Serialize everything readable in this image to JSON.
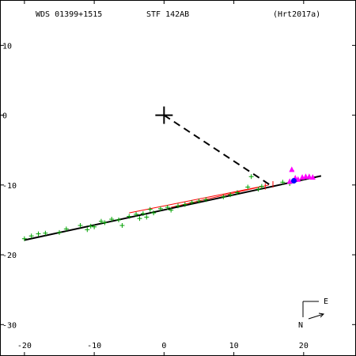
{
  "header": {
    "wds_id": "WDS 01399+1515",
    "discoverer": "STF 142AB",
    "orbit_ref": "(Hrt2017a)"
  },
  "compass": {
    "east_label": "E",
    "north_label": "N"
  },
  "colors": {
    "orbit": "#000000",
    "node_line": "#000000",
    "micrometer": "#00a000",
    "interferometric": "#ff00ff",
    "residual": "#ff0000",
    "current": "#0000ff"
  },
  "chart_data": {
    "type": "scatter",
    "xlim": [
      -23.5,
      27.5
    ],
    "ylim": [
      -34.5,
      16.5
    ],
    "x_ticks": [
      -20,
      -10,
      0,
      10,
      20
    ],
    "y_ticks": [
      10,
      0,
      -10,
      -20,
      -30
    ],
    "grid": false,
    "primary": [
      0,
      0
    ],
    "orbit_line": [
      [
        -20,
        -17.9
      ],
      [
        22.5,
        -8.7
      ]
    ],
    "line_of_nodes": [
      [
        0,
        0
      ],
      [
        15.2,
        -10.0
      ]
    ],
    "micrometer_points": [
      [
        -20.0,
        -17.7
      ],
      [
        -19.0,
        -17.3
      ],
      [
        -18.0,
        -17.0
      ],
      [
        -17.0,
        -16.9
      ],
      [
        -15.0,
        -16.8
      ],
      [
        -14.0,
        -16.3
      ],
      [
        -12.0,
        -15.8
      ],
      [
        -11.0,
        -16.4
      ],
      [
        -10.5,
        -15.9
      ],
      [
        -10.0,
        -16.0
      ],
      [
        -9.0,
        -15.2
      ],
      [
        -8.5,
        -15.4
      ],
      [
        -7.5,
        -14.9
      ],
      [
        -6.5,
        -15.0
      ],
      [
        -6.0,
        -15.8
      ],
      [
        -5.0,
        -14.5
      ],
      [
        -4.0,
        -14.2
      ],
      [
        -3.5,
        -14.8
      ],
      [
        -3.0,
        -14.1
      ],
      [
        -2.5,
        -14.6
      ],
      [
        -2.0,
        -13.5
      ],
      [
        -1.5,
        -14.0
      ],
      [
        -0.5,
        -13.4
      ],
      [
        0.5,
        -13.2
      ],
      [
        1.0,
        -13.6
      ],
      [
        2.0,
        -13.0
      ],
      [
        3.0,
        -12.8
      ],
      [
        4.0,
        -12.5
      ],
      [
        5.0,
        -12.3
      ],
      [
        6.0,
        -12.1
      ],
      [
        8.5,
        -11.7
      ],
      [
        9.5,
        -11.4
      ],
      [
        10.5,
        -11.1
      ],
      [
        12.0,
        -10.3
      ],
      [
        12.5,
        -8.8
      ],
      [
        13.5,
        -10.6
      ],
      [
        14.0,
        -10.2
      ],
      [
        17.0,
        -9.6
      ],
      [
        18.0,
        -9.8
      ]
    ],
    "interferometric_points": [
      [
        18.3,
        -7.8
      ],
      [
        18.8,
        -9.0
      ],
      [
        19.2,
        -9.2
      ],
      [
        19.8,
        -8.9
      ],
      [
        20.3,
        -8.8
      ],
      [
        20.8,
        -8.8
      ],
      [
        21.3,
        -8.9
      ],
      [
        18.0,
        -9.5
      ]
    ],
    "residual_lines": [
      [
        [
          -5.0,
          -14.0
        ],
        [
          14.0,
          -10.2
        ]
      ],
      [
        [
          1.0,
          -13.2
        ],
        [
          15.0,
          -10.0
        ]
      ]
    ],
    "current_position": [
      18.6,
      -9.4
    ]
  }
}
